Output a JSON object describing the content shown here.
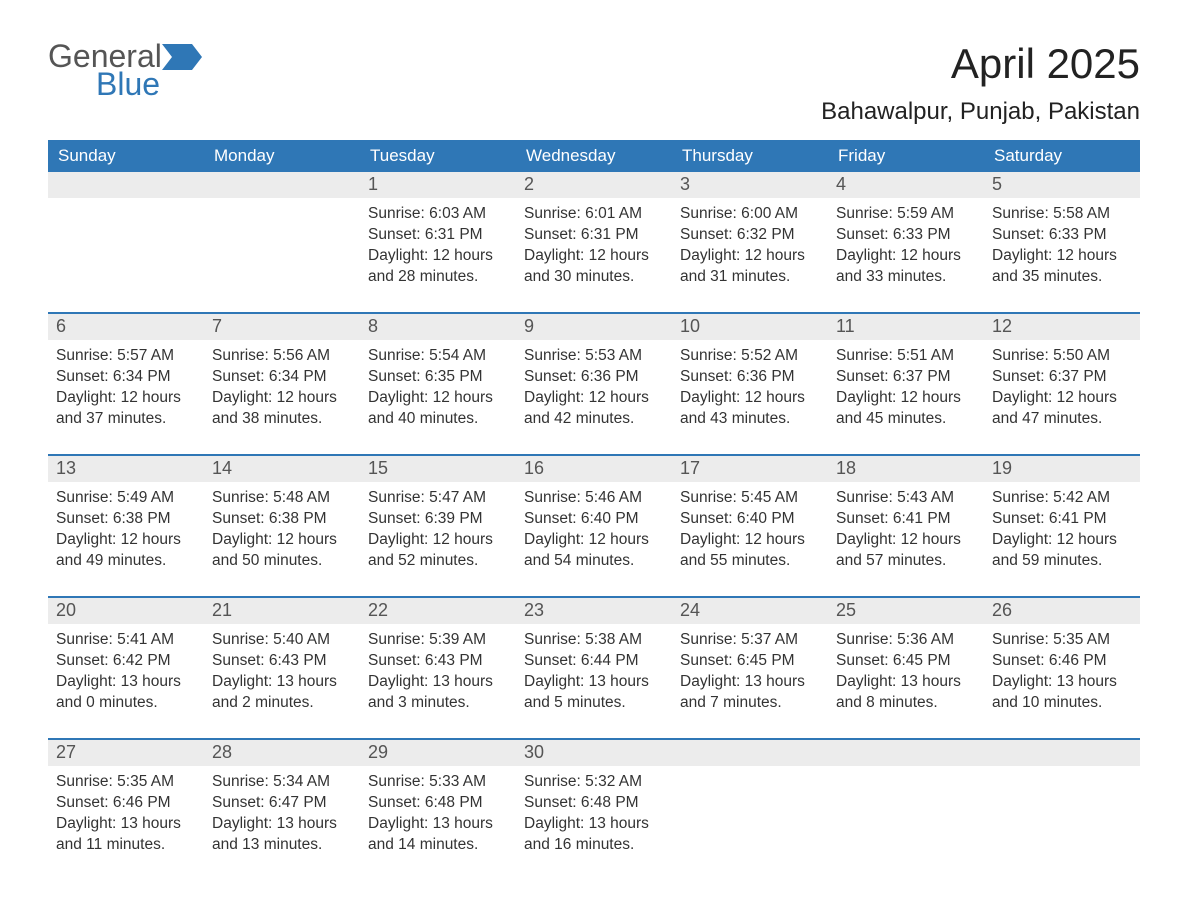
{
  "logo": {
    "word1": "General",
    "word2": "Blue",
    "flag_color": "#2f77b6",
    "word1_color": "#555555",
    "word2_color": "#2f77b6"
  },
  "title": "April 2025",
  "location": "Bahawalpur, Punjab, Pakistan",
  "colors": {
    "header_bg": "#2f77b6",
    "header_text": "#ffffff",
    "daynum_bg": "#ececec",
    "daynum_text": "#555555",
    "body_text": "#333333",
    "week_border": "#2f77b6",
    "page_bg": "#ffffff"
  },
  "fonts": {
    "title_size_pt": 32,
    "location_size_pt": 18,
    "header_size_pt": 13,
    "daynum_size_pt": 14,
    "body_size_pt": 12
  },
  "weekdays": [
    "Sunday",
    "Monday",
    "Tuesday",
    "Wednesday",
    "Thursday",
    "Friday",
    "Saturday"
  ],
  "weeks": [
    [
      {
        "num": "",
        "sunrise": "",
        "sunset": "",
        "daylight1": "",
        "daylight2": ""
      },
      {
        "num": "",
        "sunrise": "",
        "sunset": "",
        "daylight1": "",
        "daylight2": ""
      },
      {
        "num": "1",
        "sunrise": "Sunrise: 6:03 AM",
        "sunset": "Sunset: 6:31 PM",
        "daylight1": "Daylight: 12 hours",
        "daylight2": "and 28 minutes."
      },
      {
        "num": "2",
        "sunrise": "Sunrise: 6:01 AM",
        "sunset": "Sunset: 6:31 PM",
        "daylight1": "Daylight: 12 hours",
        "daylight2": "and 30 minutes."
      },
      {
        "num": "3",
        "sunrise": "Sunrise: 6:00 AM",
        "sunset": "Sunset: 6:32 PM",
        "daylight1": "Daylight: 12 hours",
        "daylight2": "and 31 minutes."
      },
      {
        "num": "4",
        "sunrise": "Sunrise: 5:59 AM",
        "sunset": "Sunset: 6:33 PM",
        "daylight1": "Daylight: 12 hours",
        "daylight2": "and 33 minutes."
      },
      {
        "num": "5",
        "sunrise": "Sunrise: 5:58 AM",
        "sunset": "Sunset: 6:33 PM",
        "daylight1": "Daylight: 12 hours",
        "daylight2": "and 35 minutes."
      }
    ],
    [
      {
        "num": "6",
        "sunrise": "Sunrise: 5:57 AM",
        "sunset": "Sunset: 6:34 PM",
        "daylight1": "Daylight: 12 hours",
        "daylight2": "and 37 minutes."
      },
      {
        "num": "7",
        "sunrise": "Sunrise: 5:56 AM",
        "sunset": "Sunset: 6:34 PM",
        "daylight1": "Daylight: 12 hours",
        "daylight2": "and 38 minutes."
      },
      {
        "num": "8",
        "sunrise": "Sunrise: 5:54 AM",
        "sunset": "Sunset: 6:35 PM",
        "daylight1": "Daylight: 12 hours",
        "daylight2": "and 40 minutes."
      },
      {
        "num": "9",
        "sunrise": "Sunrise: 5:53 AM",
        "sunset": "Sunset: 6:36 PM",
        "daylight1": "Daylight: 12 hours",
        "daylight2": "and 42 minutes."
      },
      {
        "num": "10",
        "sunrise": "Sunrise: 5:52 AM",
        "sunset": "Sunset: 6:36 PM",
        "daylight1": "Daylight: 12 hours",
        "daylight2": "and 43 minutes."
      },
      {
        "num": "11",
        "sunrise": "Sunrise: 5:51 AM",
        "sunset": "Sunset: 6:37 PM",
        "daylight1": "Daylight: 12 hours",
        "daylight2": "and 45 minutes."
      },
      {
        "num": "12",
        "sunrise": "Sunrise: 5:50 AM",
        "sunset": "Sunset: 6:37 PM",
        "daylight1": "Daylight: 12 hours",
        "daylight2": "and 47 minutes."
      }
    ],
    [
      {
        "num": "13",
        "sunrise": "Sunrise: 5:49 AM",
        "sunset": "Sunset: 6:38 PM",
        "daylight1": "Daylight: 12 hours",
        "daylight2": "and 49 minutes."
      },
      {
        "num": "14",
        "sunrise": "Sunrise: 5:48 AM",
        "sunset": "Sunset: 6:38 PM",
        "daylight1": "Daylight: 12 hours",
        "daylight2": "and 50 minutes."
      },
      {
        "num": "15",
        "sunrise": "Sunrise: 5:47 AM",
        "sunset": "Sunset: 6:39 PM",
        "daylight1": "Daylight: 12 hours",
        "daylight2": "and 52 minutes."
      },
      {
        "num": "16",
        "sunrise": "Sunrise: 5:46 AM",
        "sunset": "Sunset: 6:40 PM",
        "daylight1": "Daylight: 12 hours",
        "daylight2": "and 54 minutes."
      },
      {
        "num": "17",
        "sunrise": "Sunrise: 5:45 AM",
        "sunset": "Sunset: 6:40 PM",
        "daylight1": "Daylight: 12 hours",
        "daylight2": "and 55 minutes."
      },
      {
        "num": "18",
        "sunrise": "Sunrise: 5:43 AM",
        "sunset": "Sunset: 6:41 PM",
        "daylight1": "Daylight: 12 hours",
        "daylight2": "and 57 minutes."
      },
      {
        "num": "19",
        "sunrise": "Sunrise: 5:42 AM",
        "sunset": "Sunset: 6:41 PM",
        "daylight1": "Daylight: 12 hours",
        "daylight2": "and 59 minutes."
      }
    ],
    [
      {
        "num": "20",
        "sunrise": "Sunrise: 5:41 AM",
        "sunset": "Sunset: 6:42 PM",
        "daylight1": "Daylight: 13 hours",
        "daylight2": "and 0 minutes."
      },
      {
        "num": "21",
        "sunrise": "Sunrise: 5:40 AM",
        "sunset": "Sunset: 6:43 PM",
        "daylight1": "Daylight: 13 hours",
        "daylight2": "and 2 minutes."
      },
      {
        "num": "22",
        "sunrise": "Sunrise: 5:39 AM",
        "sunset": "Sunset: 6:43 PM",
        "daylight1": "Daylight: 13 hours",
        "daylight2": "and 3 minutes."
      },
      {
        "num": "23",
        "sunrise": "Sunrise: 5:38 AM",
        "sunset": "Sunset: 6:44 PM",
        "daylight1": "Daylight: 13 hours",
        "daylight2": "and 5 minutes."
      },
      {
        "num": "24",
        "sunrise": "Sunrise: 5:37 AM",
        "sunset": "Sunset: 6:45 PM",
        "daylight1": "Daylight: 13 hours",
        "daylight2": "and 7 minutes."
      },
      {
        "num": "25",
        "sunrise": "Sunrise: 5:36 AM",
        "sunset": "Sunset: 6:45 PM",
        "daylight1": "Daylight: 13 hours",
        "daylight2": "and 8 minutes."
      },
      {
        "num": "26",
        "sunrise": "Sunrise: 5:35 AM",
        "sunset": "Sunset: 6:46 PM",
        "daylight1": "Daylight: 13 hours",
        "daylight2": "and 10 minutes."
      }
    ],
    [
      {
        "num": "27",
        "sunrise": "Sunrise: 5:35 AM",
        "sunset": "Sunset: 6:46 PM",
        "daylight1": "Daylight: 13 hours",
        "daylight2": "and 11 minutes."
      },
      {
        "num": "28",
        "sunrise": "Sunrise: 5:34 AM",
        "sunset": "Sunset: 6:47 PM",
        "daylight1": "Daylight: 13 hours",
        "daylight2": "and 13 minutes."
      },
      {
        "num": "29",
        "sunrise": "Sunrise: 5:33 AM",
        "sunset": "Sunset: 6:48 PM",
        "daylight1": "Daylight: 13 hours",
        "daylight2": "and 14 minutes."
      },
      {
        "num": "30",
        "sunrise": "Sunrise: 5:32 AM",
        "sunset": "Sunset: 6:48 PM",
        "daylight1": "Daylight: 13 hours",
        "daylight2": "and 16 minutes."
      },
      {
        "num": "",
        "sunrise": "",
        "sunset": "",
        "daylight1": "",
        "daylight2": ""
      },
      {
        "num": "",
        "sunrise": "",
        "sunset": "",
        "daylight1": "",
        "daylight2": ""
      },
      {
        "num": "",
        "sunrise": "",
        "sunset": "",
        "daylight1": "",
        "daylight2": ""
      }
    ]
  ]
}
